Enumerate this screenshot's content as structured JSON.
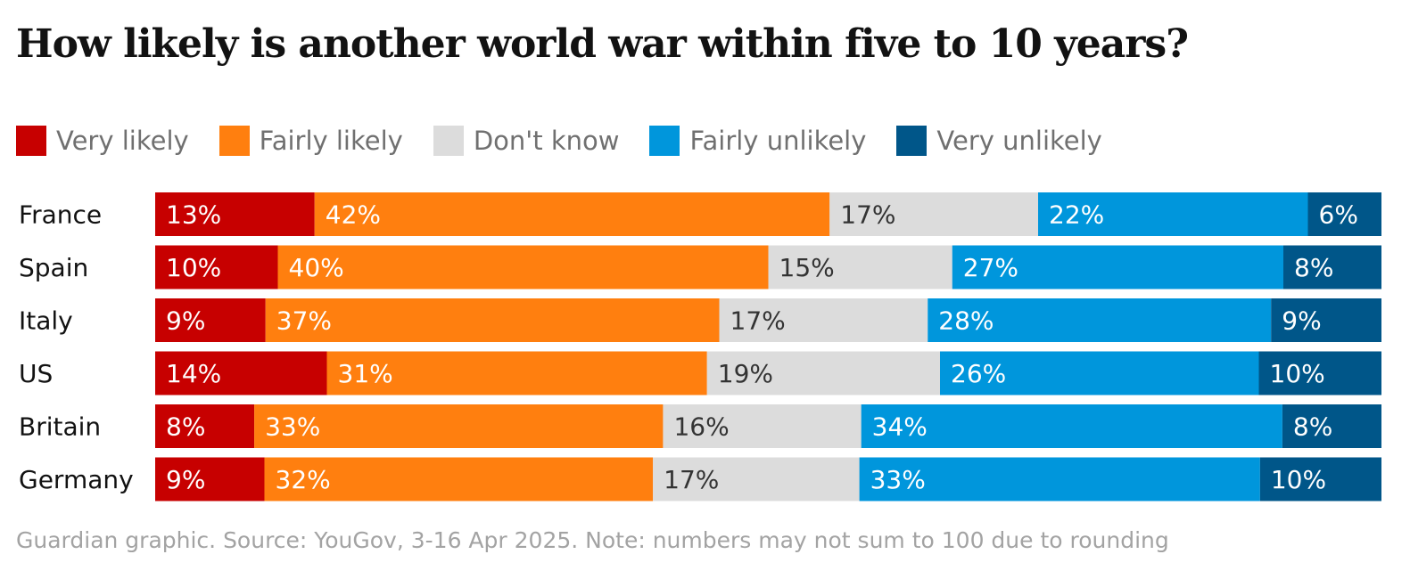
{
  "title": "How likely is another world war within five to 10 years?",
  "footer": "Guardian graphic. Source: YouGov, 3-16 Apr 2025. Note: numbers may not sum to 100 due to rounding",
  "chart_data": {
    "type": "bar",
    "orientation": "horizontal",
    "stacked": true,
    "title": "How likely is another world war within five to 10 years?",
    "categories": [
      "France",
      "Spain",
      "Italy",
      "US",
      "Britain",
      "Germany"
    ],
    "series": [
      {
        "name": "Very likely",
        "color": "#c70000",
        "label_color": "#ffffff",
        "values": [
          13,
          10,
          9,
          14,
          8,
          9
        ]
      },
      {
        "name": "Fairly likely",
        "color": "#ff7f0f",
        "label_color": "#ffffff",
        "values": [
          42,
          40,
          37,
          31,
          33,
          32
        ]
      },
      {
        "name": "Don't know",
        "color": "#dcdcdc",
        "label_color": "#333333",
        "values": [
          17,
          15,
          17,
          19,
          16,
          17
        ]
      },
      {
        "name": "Fairly unlikely",
        "color": "#0096dc",
        "label_color": "#ffffff",
        "values": [
          22,
          27,
          28,
          26,
          34,
          33
        ]
      },
      {
        "name": "Very unlikely",
        "color": "#005689",
        "label_color": "#ffffff",
        "values": [
          6,
          8,
          9,
          10,
          8,
          10
        ]
      }
    ],
    "value_suffix": "%",
    "legend_position": "top-left",
    "grid": false
  }
}
